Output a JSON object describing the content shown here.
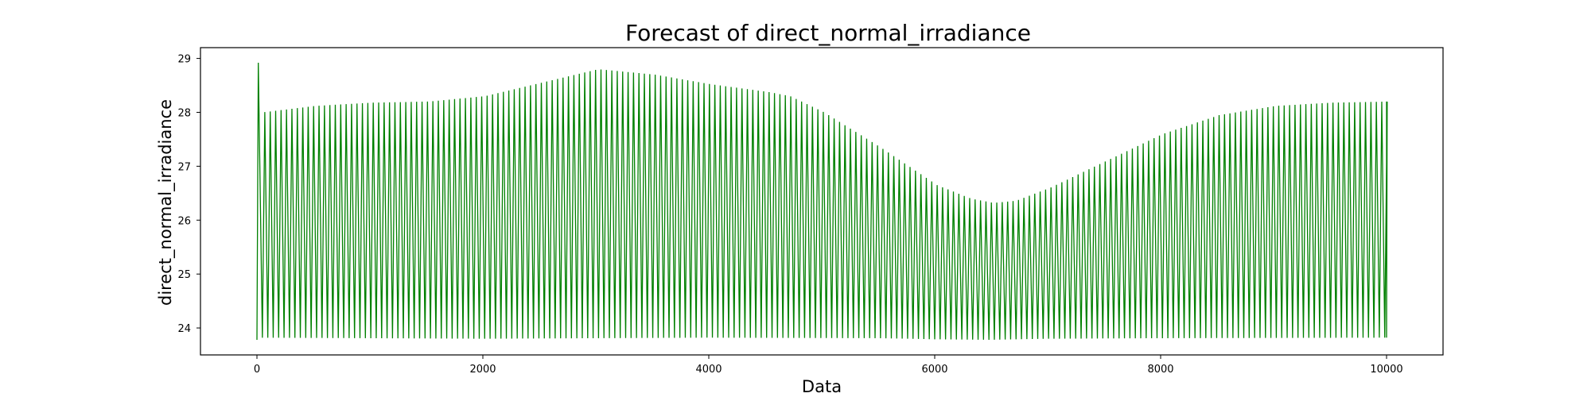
{
  "chart_data": {
    "type": "line",
    "title": "Forecast of direct_normal_irradiance",
    "xlabel": "Data",
    "ylabel": "direct_normal_irradiance",
    "xlim": [
      -500,
      10500
    ],
    "ylim": [
      23.5,
      29.2
    ],
    "xticks": [
      0,
      2000,
      4000,
      6000,
      8000,
      10000
    ],
    "xtick_labels": [
      "0",
      "2000",
      "4000",
      "6000",
      "8000",
      "10000"
    ],
    "yticks": [
      24,
      25,
      26,
      27,
      28,
      29
    ],
    "ytick_labels": [
      "24",
      "25",
      "26",
      "27",
      "28",
      "29"
    ],
    "grid": false,
    "legend": false,
    "series": [
      {
        "color": "#008000",
        "cycle_period": 48,
        "initial_spike": {
          "x": 12,
          "y": 28.92
        },
        "peak_envelope": {
          "x": [
            30,
            500,
            1000,
            1500,
            2000,
            2500,
            3000,
            3500,
            4000,
            4500,
            4700,
            5000,
            5500,
            6000,
            6300,
            6500,
            6700,
            7000,
            7500,
            8000,
            8500,
            9000,
            9500,
            10000
          ],
          "y": [
            28.0,
            28.12,
            28.18,
            28.2,
            28.3,
            28.55,
            28.8,
            28.7,
            28.52,
            28.38,
            28.3,
            28.0,
            27.35,
            26.65,
            26.4,
            26.32,
            26.36,
            26.6,
            27.1,
            27.6,
            27.95,
            28.12,
            28.18,
            28.2
          ]
        },
        "trough_envelope": {
          "x": [
            0,
            2000,
            4000,
            5500,
            6000,
            6500,
            7000,
            8000,
            10000
          ],
          "y": [
            23.82,
            23.8,
            23.82,
            23.81,
            23.79,
            23.78,
            23.8,
            23.81,
            23.82
          ]
        },
        "x_range": [
          0,
          10000
        ]
      }
    ]
  }
}
